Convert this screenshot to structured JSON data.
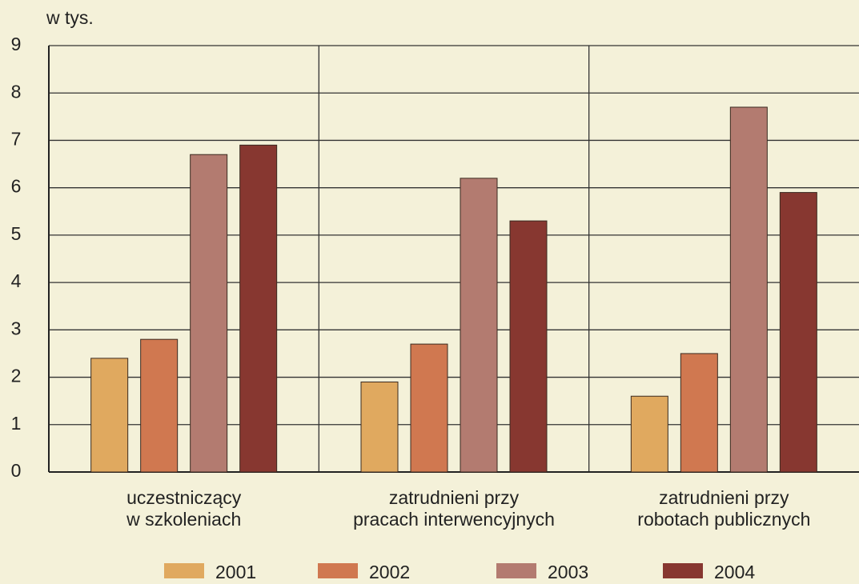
{
  "chart_data": {
    "type": "bar",
    "y_unit": "w tys.",
    "categories": [
      [
        "uczestniczący",
        "w szkoleniach"
      ],
      [
        "zatrudnieni przy",
        "pracach interwencyjnych"
      ],
      [
        "zatrudnieni przy",
        "robotach publicznych"
      ]
    ],
    "series": [
      {
        "name": "2001",
        "color": "#e0a95f",
        "values": [
          2.4,
          1.9,
          1.6
        ]
      },
      {
        "name": "2002",
        "color": "#d07850",
        "values": [
          2.8,
          2.7,
          2.5
        ]
      },
      {
        "name": "2003",
        "color": "#b37b70",
        "values": [
          6.7,
          6.2,
          7.7
        ]
      },
      {
        "name": "2004",
        "color": "#873730",
        "values": [
          6.9,
          5.3,
          5.9
        ]
      }
    ],
    "ylim": [
      0,
      9
    ],
    "yticks": [
      0,
      1,
      2,
      3,
      4,
      5,
      6,
      7,
      8,
      9
    ],
    "grid": true,
    "legend": "bottom"
  }
}
